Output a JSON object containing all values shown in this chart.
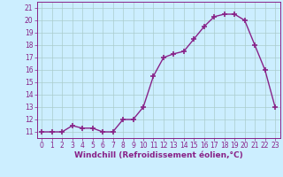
{
  "x": [
    0,
    1,
    2,
    3,
    4,
    5,
    6,
    7,
    8,
    9,
    10,
    11,
    12,
    13,
    14,
    15,
    16,
    17,
    18,
    19,
    20,
    21,
    22,
    23
  ],
  "y": [
    11,
    11,
    11,
    11.5,
    11.3,
    11.3,
    11,
    11,
    12,
    12,
    13,
    15.5,
    17,
    17.3,
    17.5,
    18.5,
    19.5,
    20.3,
    20.5,
    20.5,
    20,
    18,
    16,
    13
  ],
  "line_color": "#882288",
  "marker": "+",
  "marker_size": 4,
  "background_color": "#cceeff",
  "grid_color": "#aacccc",
  "xlabel": "Windchill (Refroidissement éolien,°C)",
  "xlim": [
    -0.5,
    23.5
  ],
  "ylim": [
    10.5,
    21.5
  ],
  "yticks": [
    11,
    12,
    13,
    14,
    15,
    16,
    17,
    18,
    19,
    20,
    21
  ],
  "xticks": [
    0,
    1,
    2,
    3,
    4,
    5,
    6,
    7,
    8,
    9,
    10,
    11,
    12,
    13,
    14,
    15,
    16,
    17,
    18,
    19,
    20,
    21,
    22,
    23
  ],
  "tick_color": "#882288",
  "label_color": "#882288",
  "tick_fontsize": 5.5,
  "xlabel_fontsize": 6.5,
  "linewidth": 1.0
}
